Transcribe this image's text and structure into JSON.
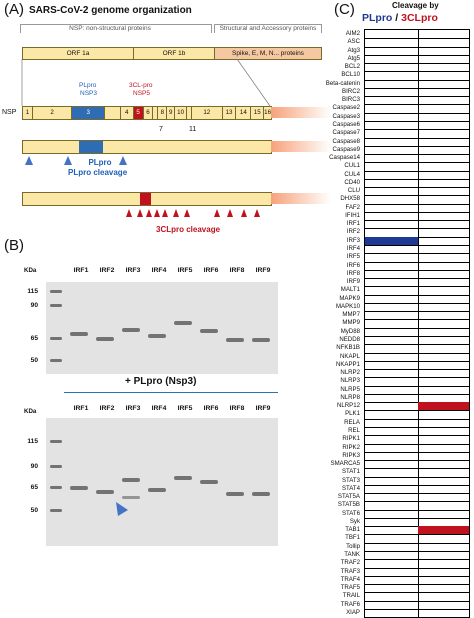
{
  "panel_a": {
    "label": "(A)",
    "title": "SARS-CoV-2 genome organization",
    "nsp_header": "NSP: non-structural proteins",
    "structural_header": "Structural and Accessory proteins",
    "orf1a": "ORF 1a",
    "orf1b": "ORF 1b",
    "spike": "Spike, E, M, N... proteins",
    "nsp_label": "NSP",
    "plpro_label": "PLpro",
    "nsp3_label": "NSP3",
    "clpro_label": "3CL-pro",
    "nsp5_label": "NSP5",
    "nsp_numbers": [
      "1",
      "2",
      "3",
      "4",
      "5",
      "6",
      "8",
      "9",
      "10",
      "12",
      "13",
      "14",
      "15",
      "16"
    ],
    "nsp_under": [
      "7",
      "11"
    ],
    "plpro_cleavage": "PLpro cleavage",
    "clpro_cleavage": "3CLpro cleavage"
  },
  "panel_b": {
    "label": "(B)",
    "kda": "KDa",
    "lanes": [
      "IRF1",
      "IRF2",
      "IRF3",
      "IRF4",
      "IRF5",
      "IRF6",
      "IRF8",
      "IRF9"
    ],
    "mw_top": [
      "115",
      "90",
      "65",
      "50"
    ],
    "mw_bottom": [
      "115",
      "90",
      "65",
      "50"
    ],
    "treatment": "+ PLpro (Nsp3)"
  },
  "panel_c": {
    "label": "(C)",
    "header": "Cleavage by",
    "plpro": "PLpro",
    "slash": " / ",
    "clpro": "3CLpro",
    "colors": {
      "plpro": "#1f3a93",
      "clpro": "#c0121e"
    },
    "genes": [
      "AIM2",
      "ASC",
      "Atg3",
      "Atg5",
      "BCL2",
      "BCL10",
      "Beta-catenin",
      "BIRC2",
      "BIRC3",
      "Caspase2",
      "Caspase3",
      "Caspase6",
      "Caspase7",
      "Caspase8",
      "Caspase9",
      "Caspase14",
      "CUL1",
      "CUL4",
      "CD40",
      "CLU",
      "DHX58",
      "FAF2",
      "IFIH1",
      "IRF1",
      "IRF2",
      "IRF3",
      "IRF4",
      "IRF5",
      "IRF6",
      "IRF8",
      "IRF9",
      "MALT1",
      "MAPK9",
      "MAPK10",
      "MMP7",
      "MMP9",
      "MyD88",
      "NEDD8",
      "NFKB1B",
      "NKAPL",
      "NKAPP1",
      "NLRP2",
      "NLRP3",
      "NLRP5",
      "NLRP8",
      "NLRP12",
      "PLK1",
      "RELA",
      "REL",
      "RIPK1",
      "RIPK2",
      "RIPK3",
      "SMARCA5",
      "STAT1",
      "STAT3",
      "STAT4",
      "STAT5A",
      "STAT5B",
      "STAT6",
      "Syk",
      "TAB1",
      "TBF1",
      "Tollip",
      "TANK",
      "TRAF2",
      "TRAF3",
      "TRAF4",
      "TRAF5",
      "TRAIL",
      "TRAF6",
      "XIAP"
    ],
    "plpro_hits": [
      "IRF3"
    ],
    "clpro_hits": [
      "NLRP12",
      "TAB1"
    ]
  }
}
